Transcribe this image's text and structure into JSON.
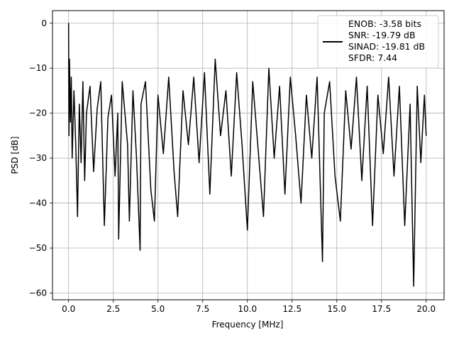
{
  "chart_data": {
    "type": "line",
    "title": "",
    "xlabel": "Frequency [MHz]",
    "ylabel": "PSD [dB]",
    "xlim": [
      -0.9,
      21.0
    ],
    "ylim": [
      -61.5,
      2.8
    ],
    "xticks": [
      0.0,
      2.5,
      5.0,
      7.5,
      10.0,
      12.5,
      15.0,
      17.5,
      20.0
    ],
    "xtick_labels": [
      "0.0",
      "2.5",
      "5.0",
      "7.5",
      "10.0",
      "12.5",
      "15.0",
      "17.5",
      "20.0"
    ],
    "yticks": [
      0,
      -10,
      -20,
      -30,
      -40,
      -50,
      -60
    ],
    "ytick_labels": [
      "0",
      "−10",
      "−20",
      "−30",
      "−40",
      "−50",
      "−60"
    ],
    "grid": true,
    "legend_position": "upper right",
    "legend": [
      "ENOB: -3.58 bits",
      "SNR: -19.79 dB",
      "SINAD: -19.81 dB",
      "SFDR: 7.44"
    ],
    "series": [
      {
        "color": "#000000",
        "points_shown": "approximate trace: noise floor between about -32 dB and -12 dB across 0-20 MHz",
        "x": [
          0.0,
          0.02,
          0.05,
          0.1,
          0.15,
          0.2,
          0.3,
          0.4,
          0.5,
          0.6,
          0.7,
          0.8,
          0.9,
          1.0,
          1.2,
          1.4,
          1.6,
          1.8,
          2.0,
          2.2,
          2.4,
          2.6,
          2.75,
          2.8,
          3.0,
          3.3,
          3.4,
          3.6,
          3.8,
          4.0,
          4.05,
          4.3,
          4.6,
          4.8,
          5.0,
          5.3,
          5.6,
          5.9,
          6.1,
          6.4,
          6.7,
          7.0,
          7.3,
          7.6,
          7.9,
          8.2,
          8.5,
          8.8,
          9.1,
          9.4,
          9.7,
          10.0,
          10.3,
          10.6,
          10.9,
          11.2,
          11.5,
          11.8,
          12.1,
          12.4,
          12.7,
          13.0,
          13.3,
          13.6,
          13.9,
          14.2,
          14.3,
          14.6,
          14.9,
          15.2,
          15.5,
          15.8,
          16.1,
          16.4,
          16.7,
          17.0,
          17.3,
          17.6,
          17.9,
          18.2,
          18.5,
          18.8,
          19.1,
          19.3,
          19.5,
          19.7,
          19.9,
          20.0
        ],
        "y": [
          0.0,
          -25.0,
          -8.0,
          -22.0,
          -12.0,
          -30.0,
          -15.0,
          -27.0,
          -43.0,
          -18.0,
          -31.0,
          -13.0,
          -35.0,
          -20.0,
          -14.0,
          -33.0,
          -19.0,
          -13.0,
          -45.0,
          -21.0,
          -16.0,
          -34.0,
          -20.0,
          -48.0,
          -13.0,
          -27.0,
          -44.0,
          -15.0,
          -30.0,
          -50.5,
          -18.0,
          -13.0,
          -37.0,
          -44.0,
          -16.0,
          -29.0,
          -12.0,
          -33.0,
          -43.0,
          -15.0,
          -27.0,
          -12.0,
          -31.0,
          -11.0,
          -38.0,
          -8.0,
          -25.0,
          -15.0,
          -34.0,
          -11.0,
          -27.0,
          -46.0,
          -13.0,
          -28.0,
          -43.0,
          -10.0,
          -30.0,
          -14.0,
          -38.0,
          -12.0,
          -25.0,
          -40.0,
          -16.0,
          -30.0,
          -12.0,
          -53.0,
          -20.0,
          -13.0,
          -34.0,
          -44.0,
          -15.0,
          -28.0,
          -12.0,
          -35.0,
          -14.0,
          -45.0,
          -16.0,
          -29.0,
          -12.0,
          -34.0,
          -14.0,
          -45.0,
          -18.0,
          -58.5,
          -14.0,
          -31.0,
          -16.0,
          -25.0
        ]
      }
    ]
  }
}
